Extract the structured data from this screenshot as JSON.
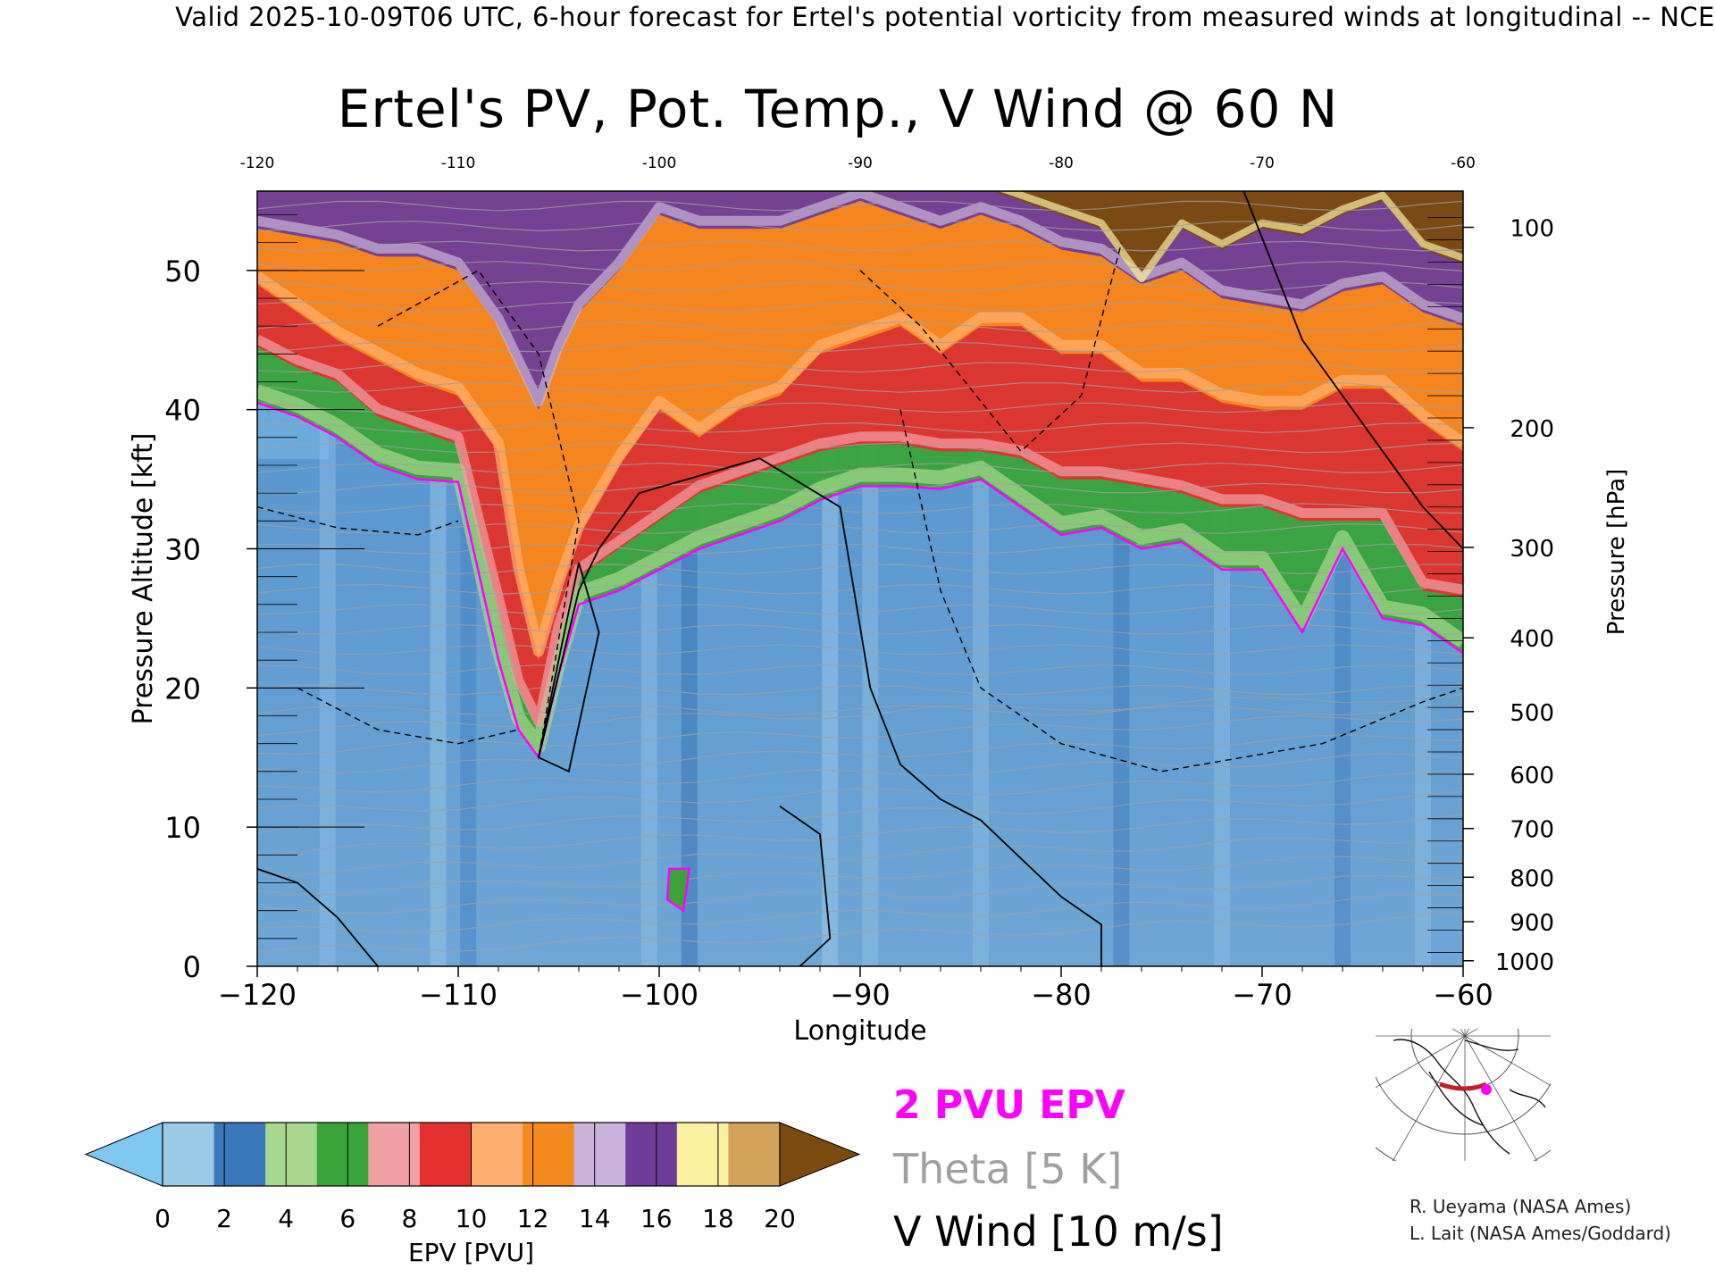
{
  "header": {
    "text": "Valid 2025-10-09T06 UTC, 6-hour forecast for Ertel's potential vorticity from measured winds at longitudinal -- NCE"
  },
  "chart_data": {
    "type": "heatmap",
    "title": "Ertel's PV, Pot. Temp., V Wind @ 60 N",
    "xlabel": "Longitude",
    "ylabel": "Pressure Altitude [kft]",
    "ylabel_right": "Pressure [hPa]",
    "xlim": [
      -120,
      -60
    ],
    "ylim": [
      0,
      55.7
    ],
    "x_ticks": [
      -120,
      -110,
      -100,
      -90,
      -80,
      -70,
      -60
    ],
    "x_tick_labels": [
      "−120",
      "−110",
      "−100",
      "−90",
      "−80",
      "−70",
      "−60"
    ],
    "x_top_tick_labels": [
      "-120",
      "-110",
      "-100",
      "-90",
      "-80",
      "-70",
      "-60"
    ],
    "y_ticks": [
      0,
      10,
      20,
      30,
      40,
      50
    ],
    "y_tick_labels": [
      "0",
      "10",
      "20",
      "30",
      "40",
      "50"
    ],
    "pressure_ticks": [
      {
        "hpa": 100,
        "kft": 53.1,
        "label": "100"
      },
      {
        "hpa": 200,
        "kft": 38.7,
        "label": "200"
      },
      {
        "hpa": 300,
        "kft": 30.1,
        "label": "300"
      },
      {
        "hpa": 400,
        "kft": 23.6,
        "label": "400"
      },
      {
        "hpa": 500,
        "kft": 18.3,
        "label": "500"
      },
      {
        "hpa": 600,
        "kft": 13.8,
        "label": "600"
      },
      {
        "hpa": 700,
        "kft": 9.9,
        "label": "700"
      },
      {
        "hpa": 800,
        "kft": 6.4,
        "label": "800"
      },
      {
        "hpa": 900,
        "kft": 3.2,
        "label": "900"
      },
      {
        "hpa": 1000,
        "kft": 0.4,
        "label": "1000"
      }
    ],
    "colorbar": {
      "label": "EPV [PVU]",
      "ticks": [
        0,
        2,
        4,
        6,
        8,
        10,
        12,
        14,
        16,
        18,
        20
      ],
      "tick_labels": [
        "0",
        "2",
        "4",
        "6",
        "8",
        "10",
        "12",
        "14",
        "16",
        "18",
        "20"
      ],
      "under_color": "#7ec8f2",
      "over_color": "#7a4a0e",
      "colors": [
        "#9ccbe8",
        "#3b78bb",
        "#a8d88e",
        "#3aa33a",
        "#f2a0a8",
        "#e53030",
        "#ffb070",
        "#f58a1e",
        "#c9b3da",
        "#6e3d99",
        "#f9f0a0",
        "#d4a35a"
      ]
    },
    "epv_bands_kft": {
      "longitude": [
        -120,
        -118,
        -116,
        -114,
        -112,
        -110,
        -108,
        -107,
        -106,
        -105,
        -104,
        -102,
        -100,
        -98,
        -96,
        -94,
        -92,
        -90,
        -88,
        -86,
        -84,
        -82,
        -80,
        -78,
        -76,
        -74,
        -72,
        -70,
        -68,
        -66,
        -64,
        -62,
        -60
      ],
      "pv2": [
        40.5,
        39.5,
        38,
        36,
        35,
        34.8,
        22,
        17,
        15,
        21,
        26,
        27,
        28.5,
        30,
        31,
        32,
        33.5,
        34.5,
        34.5,
        34.3,
        35,
        33,
        31,
        31.5,
        30,
        30.5,
        28.5,
        28.5,
        24,
        30,
        25,
        24.5,
        22.5
      ],
      "pv6": [
        44.5,
        43,
        42,
        39.5,
        38.5,
        37.5,
        26,
        20,
        17,
        24,
        28,
        30,
        32,
        34,
        35,
        36,
        37,
        37.5,
        37.5,
        37,
        37,
        36.5,
        35,
        35,
        34.5,
        34,
        33,
        33,
        32,
        32,
        32,
        27,
        26.5
      ],
      "pv10": [
        49,
        47,
        45,
        43.5,
        42,
        41,
        37,
        28,
        22,
        27,
        31,
        36,
        40,
        38,
        40,
        41,
        44,
        45,
        46,
        44,
        46,
        46,
        44,
        44,
        42,
        42,
        40.5,
        40,
        40,
        41.5,
        41.5,
        39,
        37
      ],
      "pv14": [
        53,
        52.5,
        52,
        51,
        51,
        50,
        46,
        43,
        40,
        44,
        47,
        50,
        54,
        53,
        53,
        53,
        54,
        55,
        54,
        53,
        54,
        53,
        51.5,
        51,
        49,
        50,
        48,
        47.5,
        47,
        48.5,
        49,
        47,
        46
      ],
      "pv18": [
        56,
        56,
        56,
        56,
        56,
        56,
        56,
        56,
        56,
        56,
        56,
        56,
        56,
        56,
        56,
        56,
        56,
        56,
        56,
        56,
        56,
        55,
        54,
        53,
        49,
        53,
        51.5,
        53,
        52.5,
        54,
        55,
        51.5,
        50.5
      ]
    },
    "v_wind_zero_contour": [
      [
        -106,
        15
      ],
      [
        -104,
        27
      ],
      [
        -103,
        30
      ],
      [
        -101,
        34
      ],
      [
        -95,
        36.5
      ],
      [
        -91,
        33
      ],
      [
        -89.5,
        20
      ],
      [
        -88,
        14.5
      ],
      [
        -86,
        12
      ],
      [
        -84,
        10.5
      ],
      [
        -80,
        5
      ],
      [
        -78,
        3
      ],
      [
        -78,
        0
      ]
    ],
    "v_wind_dashed_contours": [
      [
        [
          -114,
          46
        ],
        [
          -109,
          50
        ],
        [
          -106,
          44
        ],
        [
          -104,
          32
        ],
        [
          -106,
          15
        ]
      ],
      [
        [
          -118,
          20
        ],
        [
          -114,
          17
        ],
        [
          -110,
          16
        ],
        [
          -107,
          17
        ]
      ],
      [
        [
          -88,
          40
        ],
        [
          -86,
          27
        ],
        [
          -84,
          20
        ],
        [
          -80,
          16
        ],
        [
          -75,
          14
        ],
        [
          -71,
          15
        ],
        [
          -67,
          16
        ],
        [
          -62,
          19
        ],
        [
          -60,
          20
        ]
      ]
    ],
    "annotations": [
      {
        "text": "2 PVU EPV",
        "role": "legend"
      },
      {
        "text": "Theta [5 K]",
        "role": "legend"
      },
      {
        "text": "V Wind [10 m/s]",
        "role": "legend"
      }
    ]
  },
  "legend": {
    "pv_label": "2 PVU EPV",
    "theta_label": "Theta [5 K]",
    "wind_label": "V Wind [10 m/s]",
    "pv_color": "#ff00ff",
    "theta_color": "#a0a0a0",
    "wind_color": "#000000"
  },
  "credits": {
    "line1": "R. Ueyama (NASA Ames)",
    "line2": "L. Lait (NASA Ames/Goddard)"
  },
  "locator_map": {
    "marker_color": "#ff00ff",
    "line_color": "#c0202a"
  }
}
